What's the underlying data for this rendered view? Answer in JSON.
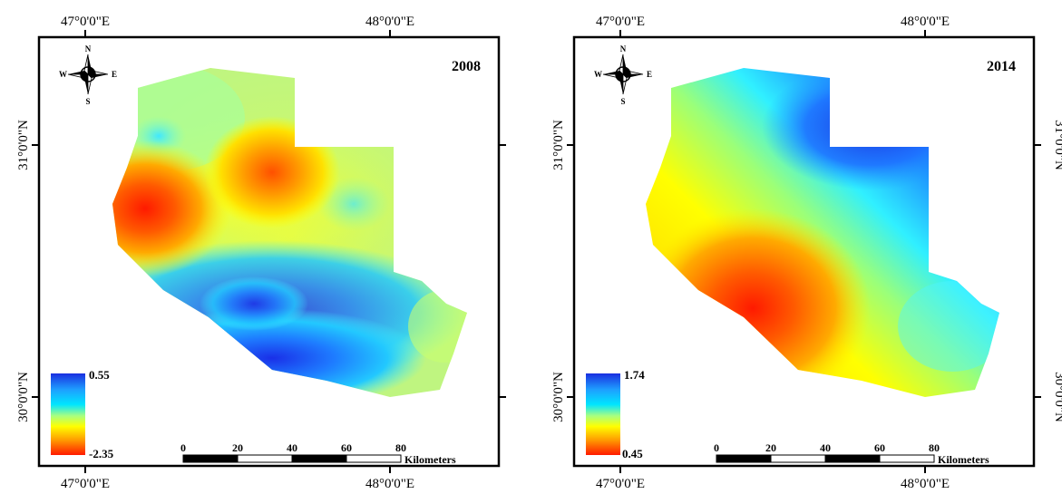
{
  "maps": [
    {
      "year": "2008",
      "legend": {
        "max": "0.55",
        "min": "-2.35"
      },
      "top_lon": [
        "47°0'0\"E",
        "48°0'0\"E"
      ],
      "bottom_lon": [
        "47°0'0\"E",
        "48°0'0\"E"
      ],
      "left_lat": [
        "31°0'0\"N",
        "30°0'0\"N"
      ]
    },
    {
      "year": "2014",
      "legend": {
        "max": "1.74",
        "min": "0.45"
      },
      "top_lon": [
        "47°0'0\"E",
        "48°0'0\"E"
      ],
      "bottom_lon": [
        "47°0'0\"E",
        "48°0'0\"E"
      ],
      "left_lat": [
        "31°0'0\"N",
        "30°0'0\"N"
      ],
      "right_lat": [
        "31°0'0\"N",
        "30°0'0\"N"
      ]
    }
  ],
  "scale_bar": {
    "ticks": [
      "0",
      "20",
      "40",
      "60",
      "80"
    ],
    "unit": "Kilometers"
  },
  "compass": {
    "n": "N",
    "s": "S",
    "e": "E",
    "w": "W"
  },
  "colors": {
    "frame": "#000000",
    "ramp": [
      "#1a2fe0",
      "#1e90ff",
      "#00e5ff",
      "#7fffb0",
      "#ffff00",
      "#ff9900",
      "#ff1a00"
    ]
  }
}
